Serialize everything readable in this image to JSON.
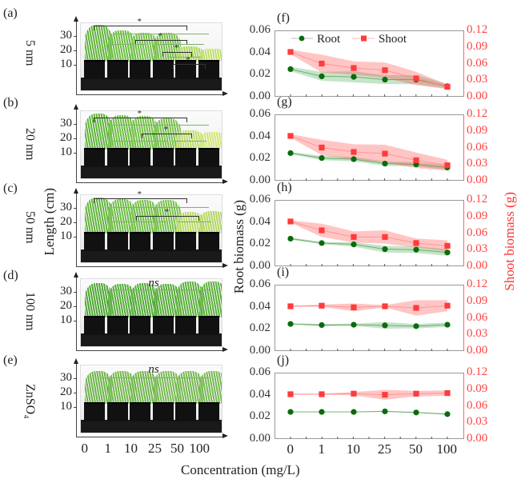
{
  "figure": {
    "photo_panels": [
      {
        "letter": "(a)",
        "row_label": "5 nm",
        "sig": "*"
      },
      {
        "letter": "(b)",
        "row_label": "20 nm",
        "sig": "*"
      },
      {
        "letter": "(c)",
        "row_label": "50 nm",
        "sig": "*"
      },
      {
        "letter": "(d)",
        "row_label": "100 nm",
        "sig": "ns"
      },
      {
        "letter": "(e)",
        "row_label": "ZnSO₄",
        "sig": "ns"
      }
    ],
    "photo_y_ticks": [
      "30",
      "20",
      "10"
    ],
    "photo_y_title": "Length (cm)",
    "x_ticks": [
      "0",
      "1",
      "10",
      "25",
      "50",
      "100"
    ],
    "x_title": "Concentration (mg/L)",
    "left_y_title": "Root biomass (g)",
    "right_y_title": "Shoot biomass (g)",
    "left_ticks": [
      "0.06",
      "0.04",
      "0.02",
      "0.00"
    ],
    "right_ticks": [
      "0.12",
      "0.09",
      "0.06",
      "0.03",
      "0.00"
    ],
    "legend": {
      "root": "Root",
      "shoot": "Shoot"
    },
    "colors": {
      "root": "#0b6b0b",
      "shoot": "#ff3b3b",
      "root_band": "#2e9e3a",
      "shoot_band": "#ff4b4b",
      "right_axis": "#ff4444"
    }
  },
  "chart_data": [
    {
      "type": "line",
      "panel": "(f)",
      "x": [
        "0",
        "1",
        "10",
        "25",
        "50",
        "100"
      ],
      "ylim_left": [
        0,
        0.06
      ],
      "ylim_right": [
        0,
        0.12
      ],
      "series": [
        {
          "name": "Root",
          "axis": "left",
          "values": [
            0.025,
            0.0185,
            0.018,
            0.0155,
            0.0155,
            0.0095
          ],
          "band": [
            0.002,
            0.004,
            0.005,
            0.004,
            0.004,
            0.002
          ]
        },
        {
          "name": "Shoot",
          "axis": "right",
          "values": [
            0.081,
            0.06,
            0.052,
            0.048,
            0.033,
            0.018
          ],
          "band": [
            0.004,
            0.016,
            0.012,
            0.014,
            0.012,
            0.004
          ]
        }
      ]
    },
    {
      "type": "line",
      "panel": "(g)",
      "x": [
        "0",
        "1",
        "10",
        "25",
        "50",
        "100"
      ],
      "ylim_left": [
        0,
        0.06
      ],
      "ylim_right": [
        0,
        0.12
      ],
      "series": [
        {
          "name": "Root",
          "axis": "left",
          "values": [
            0.025,
            0.0205,
            0.0195,
            0.0155,
            0.0148,
            0.012
          ],
          "band": [
            0.001,
            0.002,
            0.002,
            0.002,
            0.002,
            0.002
          ]
        },
        {
          "name": "Shoot",
          "axis": "right",
          "values": [
            0.081,
            0.06,
            0.052,
            0.049,
            0.037,
            0.028
          ],
          "band": [
            0.003,
            0.014,
            0.014,
            0.016,
            0.014,
            0.01
          ]
        }
      ]
    },
    {
      "type": "line",
      "panel": "(h)",
      "x": [
        "0",
        "1",
        "10",
        "25",
        "50",
        "100"
      ],
      "ylim_left": [
        0,
        0.06
      ],
      "ylim_right": [
        0,
        0.12
      ],
      "series": [
        {
          "name": "Root",
          "axis": "left",
          "values": [
            0.025,
            0.021,
            0.0198,
            0.0155,
            0.015,
            0.0125
          ],
          "band": [
            0.001,
            0.001,
            0.002,
            0.003,
            0.003,
            0.003
          ]
        },
        {
          "name": "Shoot",
          "axis": "right",
          "values": [
            0.081,
            0.065,
            0.053,
            0.053,
            0.042,
            0.037
          ],
          "band": [
            0.002,
            0.012,
            0.01,
            0.012,
            0.008,
            0.01
          ]
        }
      ]
    },
    {
      "type": "line",
      "panel": "(i)",
      "x": [
        "0",
        "1",
        "10",
        "25",
        "50",
        "100"
      ],
      "ylim_left": [
        0,
        0.06
      ],
      "ylim_right": [
        0,
        0.12
      ],
      "series": [
        {
          "name": "Root",
          "axis": "left",
          "values": [
            0.0245,
            0.0235,
            0.0238,
            0.0232,
            0.0225,
            0.0238
          ],
          "band": [
            0.0005,
            0.001,
            0.001,
            0.003,
            0.002,
            0.002
          ]
        },
        {
          "name": "Shoot",
          "axis": "right",
          "values": [
            0.081,
            0.082,
            0.079,
            0.081,
            0.078,
            0.082
          ],
          "band": [
            0.001,
            0.002,
            0.007,
            0.002,
            0.014,
            0.01
          ]
        }
      ]
    },
    {
      "type": "line",
      "panel": "(j)",
      "x": [
        "0",
        "1",
        "10",
        "25",
        "50",
        "100"
      ],
      "ylim_left": [
        0,
        0.06
      ],
      "ylim_right": [
        0,
        0.12
      ],
      "series": [
        {
          "name": "Root",
          "axis": "left",
          "values": [
            0.0245,
            0.0245,
            0.0245,
            0.025,
            0.024,
            0.0225
          ],
          "band": [
            0.0003,
            0.0003,
            0.0003,
            0.0005,
            0.0005,
            0.0005
          ]
        },
        {
          "name": "Shoot",
          "axis": "right",
          "values": [
            0.081,
            0.081,
            0.082,
            0.08,
            0.082,
            0.083
          ],
          "band": [
            0.001,
            0.001,
            0.003,
            0.009,
            0.005,
            0.005
          ]
        }
      ]
    }
  ]
}
